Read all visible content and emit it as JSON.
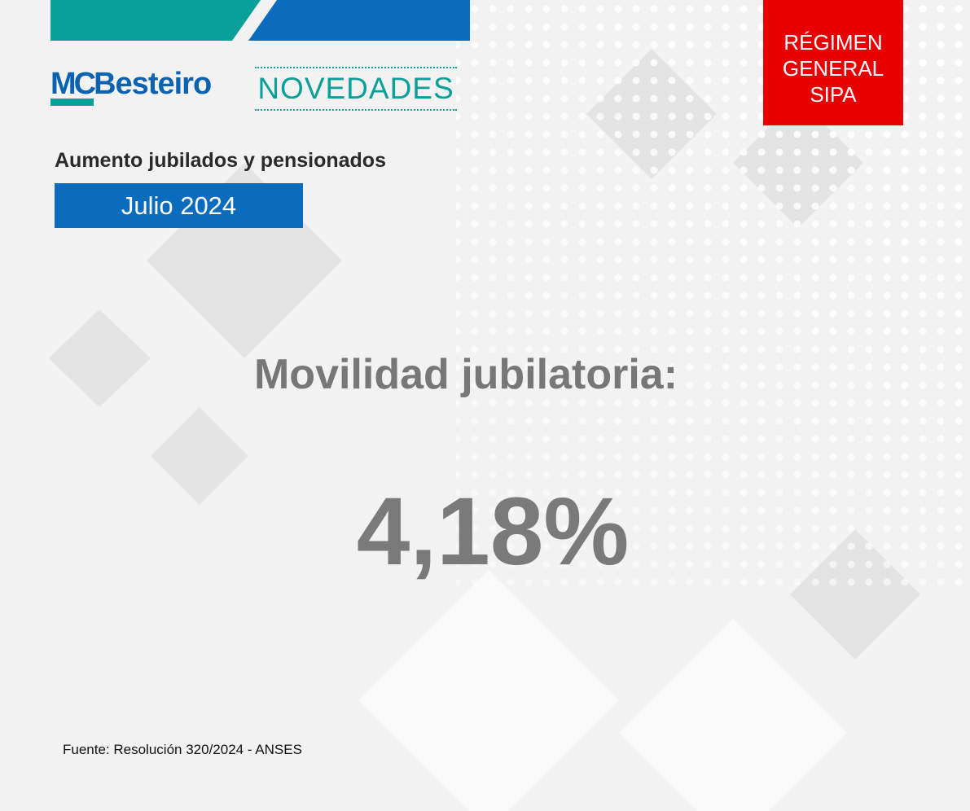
{
  "header": {
    "logo_mc": "MC",
    "logo_name": "Besteiro",
    "section": "NOVEDADES"
  },
  "badge": {
    "lines": [
      "RÉGIMEN",
      "GENERAL",
      "SIPA"
    ]
  },
  "subtitle": "Aumento jubilados y pensionados",
  "period": "Julio 2024",
  "headline": "Movilidad jubilatoria:",
  "figure": "4,18%",
  "source": "Fuente: Resolución 320/2024 - ANSES"
}
